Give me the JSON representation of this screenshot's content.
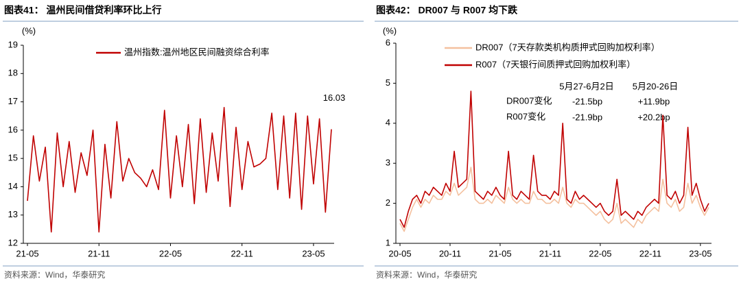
{
  "chart_data": [
    {
      "type": "line",
      "title": "图表41：  温州民间借贷利率环比上行",
      "y_label": "(%)",
      "categories": [
        "21-05",
        null,
        null,
        null,
        null,
        null,
        null,
        null,
        null,
        null,
        null,
        null,
        "21-11",
        null,
        null,
        null,
        null,
        null,
        null,
        null,
        null,
        null,
        null,
        null,
        "22-05",
        null,
        null,
        null,
        null,
        null,
        null,
        null,
        null,
        null,
        null,
        null,
        "22-11",
        null,
        null,
        null,
        null,
        null,
        null,
        null,
        null,
        null,
        null,
        null,
        "23-05",
        null,
        null,
        null
      ],
      "series": [
        {
          "name": "温州指数:温州地区民间融资综合利率",
          "color": "#c00000",
          "values": [
            13.5,
            15.8,
            14.2,
            15.4,
            12.4,
            15.9,
            14.0,
            15.6,
            13.8,
            15.2,
            14.4,
            16.0,
            12.4,
            15.5,
            13.6,
            16.3,
            14.2,
            15.0,
            14.5,
            14.3,
            14.0,
            14.6,
            13.9,
            16.7,
            13.6,
            15.8,
            14.0,
            16.2,
            13.4,
            16.4,
            13.8,
            15.9,
            14.2,
            16.8,
            13.3,
            16.1,
            13.9,
            15.6,
            14.7,
            14.8,
            15.0,
            16.6,
            13.9,
            16.5,
            13.6,
            16.6,
            13.2,
            16.5,
            14.1,
            16.4,
            13.1,
            16.03
          ]
        }
      ],
      "ylim": [
        12,
        19
      ],
      "yticks": [
        12,
        13,
        14,
        15,
        16,
        17,
        18,
        19
      ],
      "grid": false,
      "source": "资料来源：Wind，华泰研究"
    },
    {
      "type": "line",
      "title": "图表42：  DR007 与 R007 均下跌",
      "y_label": "(%)",
      "categories": [
        "20-05",
        null,
        null,
        null,
        null,
        null,
        null,
        null,
        null,
        null,
        null,
        null,
        "20-11",
        null,
        null,
        null,
        null,
        null,
        null,
        null,
        null,
        null,
        null,
        null,
        "21-05",
        null,
        null,
        null,
        null,
        null,
        null,
        null,
        null,
        null,
        null,
        null,
        "21-11",
        null,
        null,
        null,
        null,
        null,
        null,
        null,
        null,
        null,
        null,
        null,
        "22-05",
        null,
        null,
        null,
        null,
        null,
        null,
        null,
        null,
        null,
        null,
        null,
        "22-11",
        null,
        null,
        null,
        null,
        null,
        null,
        null,
        null,
        null,
        null,
        null,
        "23-05",
        null,
        null
      ],
      "series": [
        {
          "name": "DR007（7天存款类机构质押式回购加权利率）",
          "color": "#f4c09e",
          "values": [
            1.5,
            1.3,
            1.6,
            1.9,
            2.1,
            1.9,
            2.1,
            2.0,
            2.2,
            2.1,
            2.1,
            2.3,
            2.2,
            2.5,
            2.2,
            2.3,
            2.4,
            2.9,
            2.1,
            2.0,
            2.0,
            2.1,
            2.0,
            2.2,
            2.1,
            2.0,
            2.4,
            2.1,
            2.0,
            2.1,
            2.0,
            2.0,
            2.3,
            2.1,
            2.1,
            2.0,
            2.0,
            2.1,
            2.0,
            2.4,
            2.0,
            1.9,
            2.1,
            2.0,
            2.0,
            1.9,
            1.8,
            1.7,
            1.8,
            1.6,
            1.5,
            1.6,
            2.0,
            1.5,
            1.6,
            1.5,
            1.4,
            1.6,
            1.5,
            1.7,
            1.8,
            1.9,
            1.8,
            2.6,
            2.0,
            1.9,
            2.1,
            1.8,
            1.9,
            2.5,
            2.0,
            2.2,
            1.9,
            1.7,
            1.9
          ]
        },
        {
          "name": "R007（7天银行间质押式回购加权利率）",
          "color": "#c00000",
          "values": [
            1.6,
            1.4,
            1.8,
            2.1,
            2.2,
            2.0,
            2.3,
            2.2,
            2.4,
            2.3,
            2.2,
            2.5,
            2.3,
            3.3,
            2.4,
            2.5,
            2.6,
            4.8,
            2.3,
            2.2,
            2.1,
            2.3,
            2.2,
            2.4,
            2.2,
            2.1,
            3.3,
            2.2,
            2.1,
            2.3,
            2.2,
            2.1,
            3.2,
            2.3,
            2.2,
            2.2,
            2.1,
            2.3,
            2.2,
            4.0,
            2.1,
            2.0,
            2.3,
            2.1,
            2.2,
            2.1,
            2.0,
            1.9,
            2.0,
            1.8,
            1.7,
            1.8,
            2.6,
            1.7,
            1.8,
            1.7,
            1.6,
            1.8,
            1.7,
            1.9,
            2.0,
            2.1,
            2.0,
            4.2,
            2.2,
            2.1,
            2.3,
            2.0,
            2.2,
            3.9,
            2.2,
            2.5,
            2.1,
            1.8,
            2.0
          ]
        }
      ],
      "ylim": [
        1,
        6
      ],
      "yticks": [
        1,
        2,
        3,
        4,
        5,
        6
      ],
      "grid": false,
      "table": {
        "columns": [
          "5月27-6月2日",
          "5月20-26日"
        ],
        "rows": [
          {
            "label": "DR007变化",
            "cells": [
              "-21.5bp",
              "+11.9bp"
            ]
          },
          {
            "label": "R007变化",
            "cells": [
              "-21.9bp",
              "+20.2bp"
            ]
          }
        ]
      },
      "source": "资料来源：Wind，华泰研究"
    }
  ]
}
